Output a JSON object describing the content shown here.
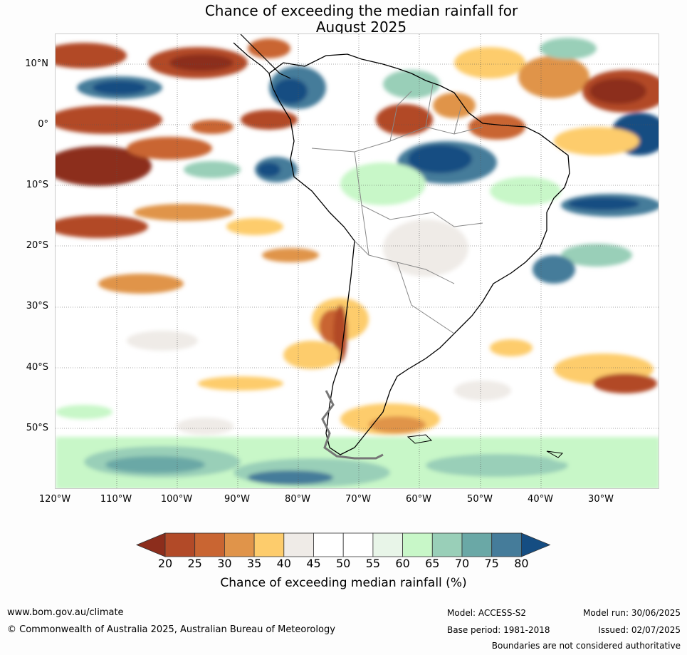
{
  "title": {
    "line1": "Chance of exceeding the median rainfall for",
    "line2": "August 2025"
  },
  "map": {
    "lat_labels": [
      "10°N",
      "0°",
      "10°S",
      "20°S",
      "30°S",
      "40°S",
      "50°S"
    ],
    "lon_labels": [
      "120°W",
      "110°W",
      "100°W",
      "90°W",
      "80°W",
      "70°W",
      "60°W",
      "50°W",
      "40°W",
      "30°W"
    ]
  },
  "colorbar": {
    "ticks": [
      "20",
      "25",
      "30",
      "35",
      "40",
      "45",
      "50",
      "55",
      "60",
      "65",
      "70",
      "75",
      "80"
    ],
    "colors": [
      "#8c2d1c",
      "#b24a28",
      "#c96532",
      "#e0944a",
      "#fdcc6c",
      "#efebe7",
      "#ffffff",
      "#ffffff",
      "#e8f5e8",
      "#c8f7c8",
      "#99cfb8",
      "#6aa8a6",
      "#457c9a",
      "#154d82"
    ],
    "label": "Chance of exceeding median rainfall (%)"
  },
  "footer": {
    "website": "www.bom.gov.au/climate",
    "copyright": "© Commonwealth of Australia 2025, Australian Bureau of Meteorology",
    "model": "Model: ACCESS-S2",
    "base_period": "Base period: 1981-2018",
    "model_run": "Model run: 30/06/2025",
    "issued": "Issued: 02/07/2025",
    "disclaimer": "Boundaries are not considered authoritative"
  }
}
